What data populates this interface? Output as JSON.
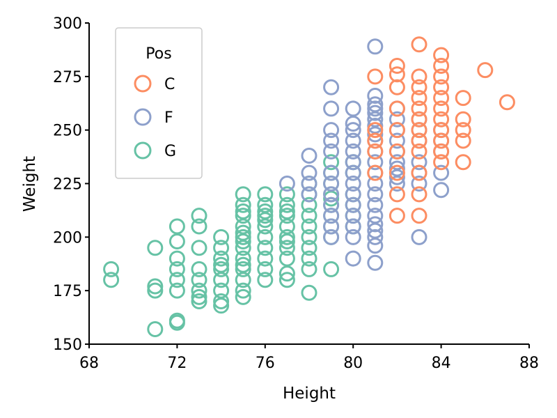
{
  "chart_data": {
    "type": "scatter",
    "title": "",
    "xlabel": "Height",
    "ylabel": "Weight",
    "xlim": [
      68,
      88
    ],
    "ylim": [
      150,
      300
    ],
    "xticks": [
      68,
      72,
      76,
      80,
      84,
      88
    ],
    "yticks": [
      150,
      175,
      200,
      225,
      250,
      275,
      300
    ],
    "legend": {
      "title": "Pos",
      "placement": "top-left"
    },
    "series": [
      {
        "name": "C",
        "color": "#fc8d62",
        "points": [
          [
            86,
            278
          ],
          [
            87,
            263
          ],
          [
            84,
            285
          ],
          [
            84,
            280
          ],
          [
            84,
            275
          ],
          [
            83,
            290
          ],
          [
            82,
            280
          ],
          [
            82,
            276
          ],
          [
            81,
            275
          ],
          [
            83,
            275
          ],
          [
            83,
            270
          ],
          [
            84,
            270
          ],
          [
            85,
            265
          ],
          [
            85,
            255
          ],
          [
            85,
            250
          ],
          [
            85,
            245
          ],
          [
            85,
            235
          ],
          [
            84,
            265
          ],
          [
            84,
            260
          ],
          [
            84,
            255
          ],
          [
            84,
            250
          ],
          [
            84,
            245
          ],
          [
            84,
            240
          ],
          [
            84,
            235
          ],
          [
            83,
            265
          ],
          [
            83,
            260
          ],
          [
            83,
            255
          ],
          [
            83,
            250
          ],
          [
            83,
            245
          ],
          [
            83,
            240
          ],
          [
            83,
            230
          ],
          [
            83,
            220
          ],
          [
            83,
            210
          ],
          [
            82,
            270
          ],
          [
            82,
            260
          ],
          [
            82,
            250
          ],
          [
            82,
            240
          ],
          [
            82,
            230
          ],
          [
            82,
            220
          ],
          [
            82,
            210
          ],
          [
            81,
            250
          ],
          [
            81,
            245
          ],
          [
            81,
            240
          ],
          [
            81,
            230
          ]
        ]
      },
      {
        "name": "F",
        "color": "#8da0cb",
        "points": [
          [
            81,
            289
          ],
          [
            81,
            266
          ],
          [
            81,
            262
          ],
          [
            81,
            260
          ],
          [
            81,
            258
          ],
          [
            81,
            255
          ],
          [
            81,
            252
          ],
          [
            81,
            248
          ],
          [
            81,
            245
          ],
          [
            81,
            240
          ],
          [
            81,
            235
          ],
          [
            81,
            230
          ],
          [
            81,
            225
          ],
          [
            81,
            220
          ],
          [
            81,
            215
          ],
          [
            81,
            210
          ],
          [
            81,
            206
          ],
          [
            81,
            203
          ],
          [
            81,
            188
          ],
          [
            79,
            270
          ],
          [
            79,
            260
          ],
          [
            79,
            250
          ],
          [
            79,
            245
          ],
          [
            79,
            240
          ],
          [
            79,
            230
          ],
          [
            79,
            225
          ],
          [
            79,
            220
          ],
          [
            79,
            215
          ],
          [
            79,
            210
          ],
          [
            79,
            205
          ],
          [
            79,
            200
          ],
          [
            80,
            260
          ],
          [
            80,
            253
          ],
          [
            80,
            250
          ],
          [
            80,
            245
          ],
          [
            80,
            240
          ],
          [
            80,
            235
          ],
          [
            80,
            230
          ],
          [
            80,
            225
          ],
          [
            80,
            220
          ],
          [
            80,
            215
          ],
          [
            80,
            210
          ],
          [
            80,
            205
          ],
          [
            80,
            200
          ],
          [
            80,
            190
          ],
          [
            82,
            260
          ],
          [
            82,
            255
          ],
          [
            82,
            250
          ],
          [
            82,
            245
          ],
          [
            82,
            240
          ],
          [
            82,
            235
          ],
          [
            82,
            232
          ],
          [
            82,
            228
          ],
          [
            82,
            225
          ],
          [
            83,
            255
          ],
          [
            83,
            250
          ],
          [
            83,
            245
          ],
          [
            83,
            235
          ],
          [
            83,
            230
          ],
          [
            83,
            225
          ],
          [
            83,
            200
          ],
          [
            84,
            250
          ],
          [
            84,
            245
          ],
          [
            84,
            240
          ],
          [
            84,
            230
          ],
          [
            84,
            222
          ],
          [
            78,
            238
          ],
          [
            78,
            230
          ],
          [
            78,
            225
          ],
          [
            78,
            220
          ],
          [
            77,
            225
          ],
          [
            81,
            196
          ],
          [
            81,
            200
          ]
        ]
      },
      {
        "name": "G",
        "color": "#66c2a5",
        "points": [
          [
            69,
            185
          ],
          [
            69,
            180
          ],
          [
            71,
            195
          ],
          [
            71,
            177
          ],
          [
            71,
            175
          ],
          [
            71,
            157
          ],
          [
            72,
            205
          ],
          [
            72,
            198
          ],
          [
            72,
            190
          ],
          [
            72,
            185
          ],
          [
            72,
            180
          ],
          [
            72,
            175
          ],
          [
            72,
            161
          ],
          [
            72,
            160
          ],
          [
            73,
            210
          ],
          [
            73,
            205
          ],
          [
            73,
            195
          ],
          [
            73,
            185
          ],
          [
            73,
            180
          ],
          [
            73,
            175
          ],
          [
            73,
            172
          ],
          [
            73,
            170
          ],
          [
            74,
            200
          ],
          [
            74,
            195
          ],
          [
            74,
            190
          ],
          [
            74,
            187
          ],
          [
            74,
            185
          ],
          [
            74,
            180
          ],
          [
            74,
            175
          ],
          [
            74,
            170
          ],
          [
            74,
            168
          ],
          [
            75,
            220
          ],
          [
            75,
            215
          ],
          [
            75,
            212
          ],
          [
            75,
            210
          ],
          [
            75,
            205
          ],
          [
            75,
            202
          ],
          [
            75,
            200
          ],
          [
            75,
            198
          ],
          [
            75,
            195
          ],
          [
            75,
            190
          ],
          [
            75,
            187
          ],
          [
            75,
            185
          ],
          [
            75,
            180
          ],
          [
            75,
            175
          ],
          [
            75,
            172
          ],
          [
            76,
            220
          ],
          [
            76,
            215
          ],
          [
            76,
            212
          ],
          [
            76,
            210
          ],
          [
            76,
            208
          ],
          [
            76,
            205
          ],
          [
            76,
            200
          ],
          [
            76,
            195
          ],
          [
            76,
            190
          ],
          [
            76,
            185
          ],
          [
            76,
            180
          ],
          [
            77,
            220
          ],
          [
            77,
            215
          ],
          [
            77,
            212
          ],
          [
            77,
            210
          ],
          [
            77,
            205
          ],
          [
            77,
            200
          ],
          [
            77,
            198
          ],
          [
            77,
            195
          ],
          [
            77,
            190
          ],
          [
            77,
            183
          ],
          [
            77,
            180
          ],
          [
            78,
            225
          ],
          [
            78,
            220
          ],
          [
            78,
            215
          ],
          [
            78,
            210
          ],
          [
            78,
            205
          ],
          [
            78,
            200
          ],
          [
            78,
            195
          ],
          [
            78,
            190
          ],
          [
            78,
            185
          ],
          [
            78,
            174
          ],
          [
            79,
            235
          ],
          [
            79,
            230
          ],
          [
            79,
            225
          ],
          [
            79,
            220
          ],
          [
            79,
            218
          ],
          [
            79,
            215
          ],
          [
            79,
            210
          ],
          [
            79,
            205
          ],
          [
            79,
            200
          ],
          [
            79,
            185
          ],
          [
            80,
            235
          ],
          [
            80,
            230
          ],
          [
            80,
            220
          ],
          [
            80,
            215
          ],
          [
            80,
            210
          ],
          [
            80,
            205
          ]
        ]
      }
    ]
  }
}
